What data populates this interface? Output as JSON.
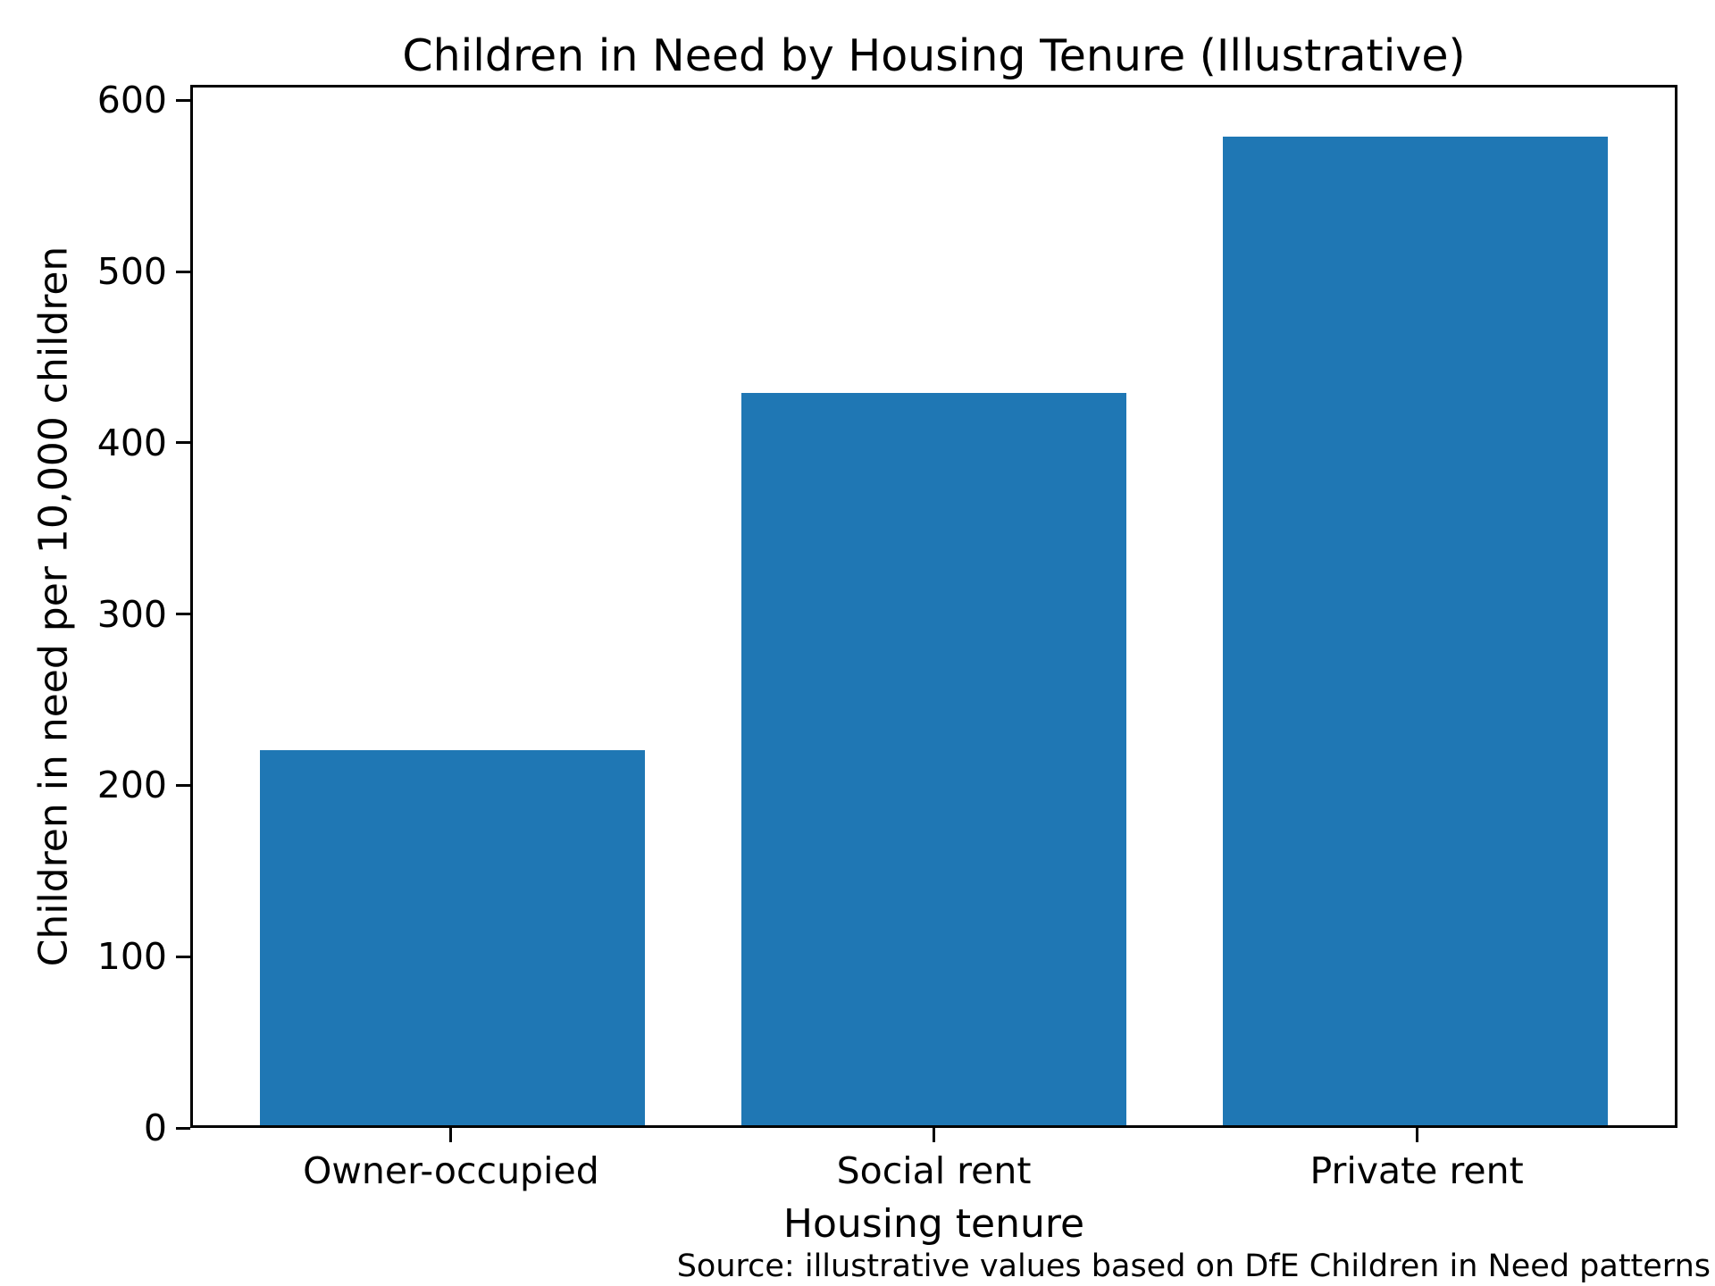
{
  "figure": {
    "background_color": "#ffffff",
    "text_color": "#000000"
  },
  "chart_data": {
    "type": "bar",
    "title": "Children in Need by Housing Tenure (Illustrative)",
    "categories": [
      "Owner-occupied",
      "Social rent",
      "Private rent"
    ],
    "values": [
      220,
      430,
      580
    ],
    "xlabel": "Housing tenure",
    "ylabel": "Children in need per 10,000 children",
    "annotation": "Source: illustrative values based on DfE Children in Need patterns",
    "ylim": [
      0,
      609
    ],
    "yticks": [
      0,
      100,
      200,
      300,
      400,
      500,
      600
    ],
    "xlim": [
      -0.54,
      2.54
    ],
    "bar_positions": [
      0,
      1,
      2
    ],
    "bar_width": 0.8,
    "bar_color": "#1f77b4",
    "grid": false,
    "legend": null
  }
}
